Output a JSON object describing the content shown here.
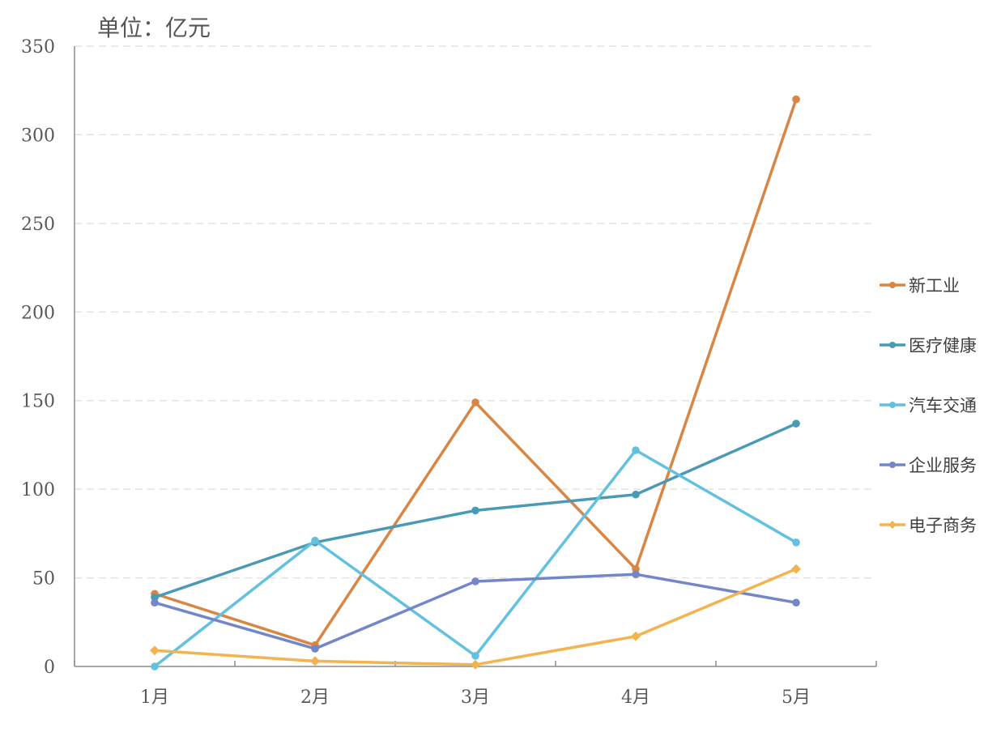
{
  "chart_data": {
    "type": "line",
    "unit_label": "单位：亿元",
    "categories": [
      "1月",
      "2月",
      "3月",
      "4月",
      "5月"
    ],
    "ylim": [
      0,
      350
    ],
    "yticks": [
      0,
      50,
      100,
      150,
      200,
      250,
      300,
      350
    ],
    "grid": true,
    "legend_position": "right",
    "series": [
      {
        "name": "新工业",
        "values": [
          41,
          12,
          149,
          55,
          320
        ],
        "color": "#d98543",
        "marker": "circle"
      },
      {
        "name": "医疗健康",
        "values": [
          39,
          70,
          88,
          97,
          137
        ],
        "color": "#4a9ab5",
        "marker": "circle"
      },
      {
        "name": "汽车交通",
        "values": [
          0,
          71,
          6,
          122,
          70
        ],
        "color": "#62c1df",
        "marker": "circle"
      },
      {
        "name": "企业服务",
        "values": [
          36,
          10,
          48,
          52,
          36
        ],
        "color": "#7286c8",
        "marker": "circle"
      },
      {
        "name": "电子商务",
        "values": [
          9,
          3,
          1,
          17,
          55
        ],
        "color": "#f3b350",
        "marker": "diamond"
      }
    ]
  }
}
